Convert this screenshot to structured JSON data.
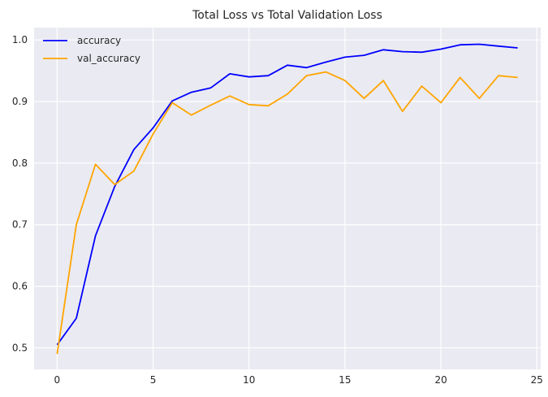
{
  "chart_data": {
    "type": "line",
    "title": "Total Loss vs Total Validation Loss",
    "xlabel": "",
    "ylabel": "",
    "xlim": [
      -1.2,
      25.2
    ],
    "ylim": [
      0.465,
      1.02
    ],
    "xticks": [
      0,
      5,
      10,
      15,
      20,
      25
    ],
    "yticks": [
      0.5,
      0.6,
      0.7,
      0.8,
      0.9,
      1.0
    ],
    "xtick_labels": [
      "0",
      "5",
      "10",
      "15",
      "20",
      "25"
    ],
    "ytick_labels": [
      "0.5",
      "0.6",
      "0.7",
      "0.8",
      "0.9",
      "1.0"
    ],
    "grid": true,
    "legend_position": "top-left",
    "x": [
      0,
      1,
      2,
      3,
      4,
      5,
      6,
      7,
      8,
      9,
      10,
      11,
      12,
      13,
      14,
      15,
      16,
      17,
      18,
      19,
      20,
      21,
      22,
      23,
      24
    ],
    "series": [
      {
        "name": "accuracy",
        "color": "#0000ff",
        "values": [
          0.505,
          0.548,
          0.682,
          0.762,
          0.822,
          0.857,
          0.901,
          0.915,
          0.922,
          0.945,
          0.94,
          0.942,
          0.959,
          0.955,
          0.964,
          0.972,
          0.975,
          0.984,
          0.981,
          0.98,
          0.985,
          0.992,
          0.993,
          0.99,
          0.987
        ]
      },
      {
        "name": "val_accuracy",
        "color": "#ffa500",
        "values": [
          0.49,
          0.7,
          0.798,
          0.765,
          0.787,
          0.847,
          0.898,
          0.878,
          0.894,
          0.909,
          0.895,
          0.893,
          0.912,
          0.942,
          0.948,
          0.934,
          0.905,
          0.934,
          0.884,
          0.925,
          0.898,
          0.939,
          0.905,
          0.942,
          0.939
        ]
      }
    ]
  }
}
